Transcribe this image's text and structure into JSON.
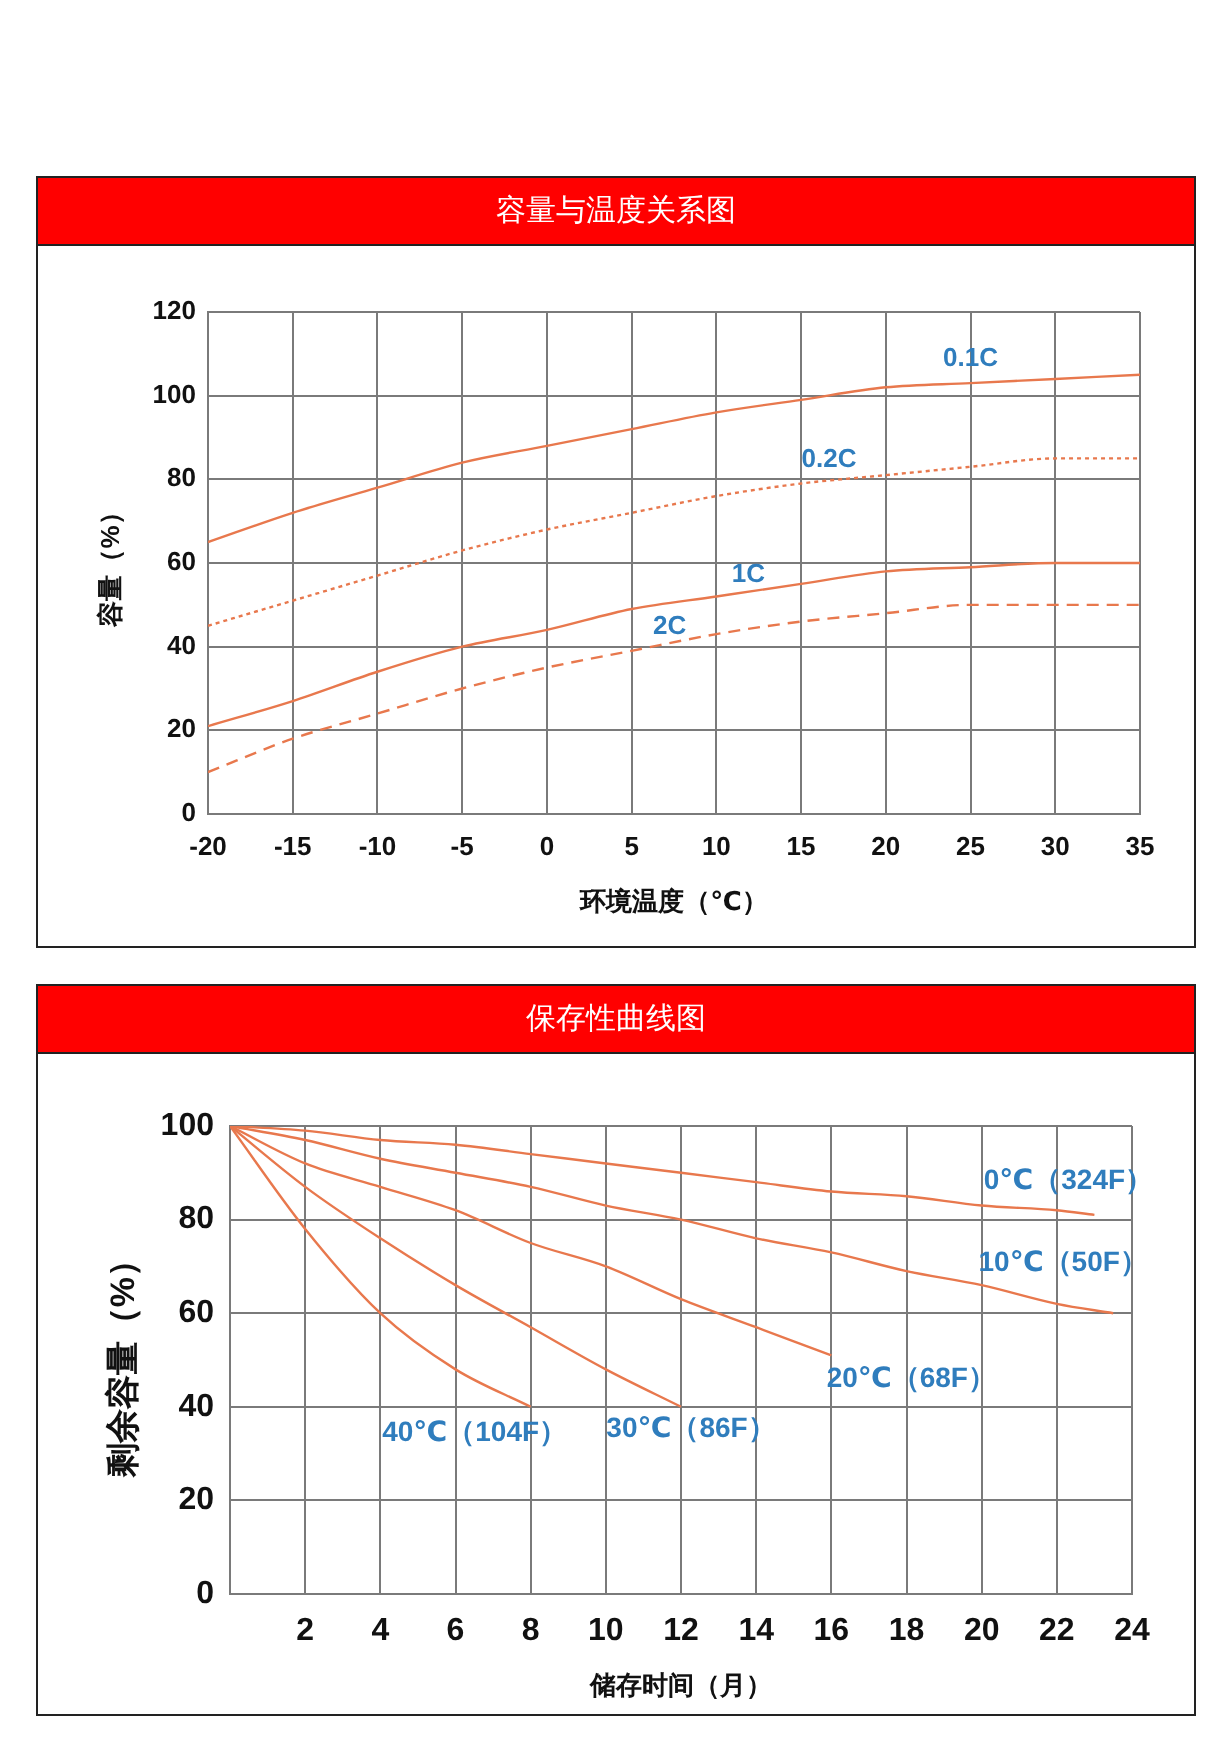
{
  "chart_data": [
    {
      "type": "line",
      "title": "容量与温度关系图",
      "xlabel": "环境温度（℃）",
      "ylabel": "容量（%）",
      "x": [
        -20,
        -15,
        -10,
        -5,
        0,
        5,
        10,
        15,
        20,
        25,
        30,
        35
      ],
      "series": [
        {
          "name": "0.1C",
          "color": "#e8784d",
          "line_style": "solid",
          "values": [
            65,
            72,
            78,
            84,
            88,
            92,
            96,
            99,
            102,
            103,
            104,
            105
          ]
        },
        {
          "name": "0.2C",
          "color": "#e8784d",
          "line_style": "dotted",
          "values": [
            45,
            51,
            57,
            63,
            68,
            72,
            76,
            79,
            81,
            83,
            85,
            85
          ]
        },
        {
          "name": "1C",
          "color": "#e8784d",
          "line_style": "solid",
          "values": [
            21,
            27,
            34,
            40,
            44,
            49,
            52,
            55,
            58,
            59,
            60,
            60
          ]
        },
        {
          "name": "2C",
          "color": "#e8784d",
          "line_style": "dashed",
          "values": [
            10,
            18,
            24,
            30,
            35,
            39,
            43,
            46,
            48,
            50,
            50,
            50
          ]
        }
      ],
      "xlim": [
        -20,
        35
      ],
      "xticks": [
        -20,
        -15,
        -10,
        -5,
        0,
        5,
        10,
        15,
        20,
        25,
        30,
        35
      ],
      "ylim": [
        0,
        120
      ],
      "yticks": [
        0,
        20,
        40,
        60,
        80,
        100,
        120
      ],
      "grid": true,
      "legend": false,
      "marker": "none"
    },
    {
      "type": "line",
      "title": "保存性曲线图",
      "xlabel": "储存时间（月）",
      "ylabel": "剩余容量（%）",
      "series": [
        {
          "name": "0℃（324F）",
          "color": "#e8784d",
          "x": [
            0,
            2,
            4,
            6,
            8,
            10,
            12,
            14,
            16,
            18,
            20,
            22,
            23
          ],
          "values": [
            100,
            99,
            97,
            96,
            94,
            92,
            90,
            88,
            86,
            85,
            83,
            82,
            81
          ]
        },
        {
          "name": "10℃（50F）",
          "color": "#e8784d",
          "x": [
            0,
            2,
            4,
            6,
            8,
            10,
            12,
            14,
            16,
            18,
            20,
            22,
            23.5
          ],
          "values": [
            100,
            97,
            93,
            90,
            87,
            83,
            80,
            76,
            73,
            69,
            66,
            62,
            60
          ]
        },
        {
          "name": "20℃（68F）",
          "color": "#e8784d",
          "x": [
            0,
            2,
            4,
            6,
            8,
            10,
            12,
            14,
            16
          ],
          "values": [
            100,
            92,
            87,
            82,
            75,
            70,
            63,
            57,
            51
          ]
        },
        {
          "name": "30℃（86F）",
          "color": "#e8784d",
          "x": [
            0,
            2,
            4,
            6,
            8,
            10,
            12
          ],
          "values": [
            100,
            87,
            76,
            66,
            57,
            48,
            40
          ]
        },
        {
          "name": "40℃（104F）",
          "color": "#e8784d",
          "x": [
            0,
            2,
            4,
            6,
            8
          ],
          "values": [
            100,
            78,
            60,
            48,
            40
          ]
        }
      ],
      "xlim": [
        0,
        24
      ],
      "xticks": [
        2,
        4,
        6,
        8,
        10,
        12,
        14,
        16,
        18,
        20,
        22,
        24
      ],
      "ylim": [
        0,
        100
      ],
      "yticks": [
        0,
        20,
        40,
        60,
        80,
        100
      ],
      "grid": true,
      "legend": false,
      "marker": "none",
      "line_style": "solid"
    }
  ]
}
